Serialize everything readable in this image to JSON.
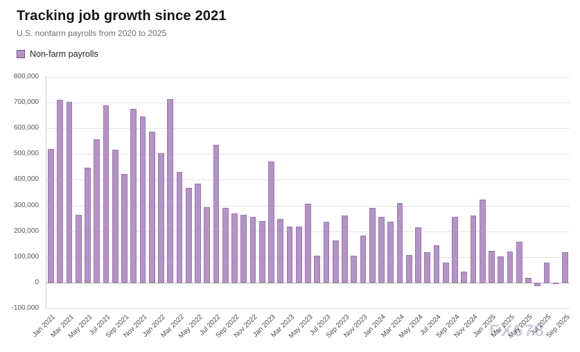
{
  "header": {
    "title": "Tracking job growth since 2021",
    "subtitle": "U.S. nonfarm payrolls from 2020 to 2025"
  },
  "legend": {
    "label": "Non-farm payrolls",
    "color": "#b493c6"
  },
  "watermark": "FX678",
  "chart_data": {
    "type": "bar",
    "title": "Tracking job growth since 2021",
    "xlabel": "",
    "ylabel": "",
    "series_name": "Non-farm payrolls",
    "ylim": [
      -100000,
      800000
    ],
    "y_tick_labels": [
      "800,000",
      "700,000",
      "600,000",
      "500,000",
      "400,000",
      "300,000",
      "200,000",
      "100,000",
      "0",
      "-100,000"
    ],
    "x_tick_every": 2,
    "grid": true,
    "legend_position": "top-left",
    "bar_color": "#b493c6",
    "bar_border_color": "#9b77b3",
    "categories": [
      "Jan 2021",
      "Feb 2021",
      "Mar 2021",
      "Apr 2021",
      "May 2021",
      "Jun 2021",
      "Jul 2021",
      "Aug 2021",
      "Sep 2021",
      "Oct 2021",
      "Nov 2021",
      "Dec 2021",
      "Jan 2022",
      "Feb 2022",
      "Mar 2022",
      "Apr 2022",
      "May 2022",
      "Jun 2022",
      "Jul 2022",
      "Aug 2022",
      "Sep 2022",
      "Oct 2022",
      "Nov 2022",
      "Dec 2022",
      "Jan 2023",
      "Feb 2023",
      "Mar 2023",
      "Apr 2023",
      "May 2023",
      "Jun 2023",
      "Jul 2023",
      "Aug 2023",
      "Sep 2023",
      "Oct 2023",
      "Nov 2023",
      "Dec 2023",
      "Jan 2024",
      "Feb 2024",
      "Mar 2024",
      "Apr 2024",
      "May 2024",
      "Jun 2024",
      "Jul 2024",
      "Aug 2024",
      "Sep 2024",
      "Oct 2024",
      "Nov 2024",
      "Dec 2024",
      "Jan 2025",
      "Feb 2025",
      "Mar 2025",
      "Apr 2025",
      "May 2025",
      "Jun 2025",
      "Jul 2025",
      "Aug 2025",
      "Sep 2025"
    ],
    "values": [
      520000,
      710000,
      704000,
      263000,
      447000,
      557000,
      689000,
      517000,
      424000,
      677000,
      647000,
      588000,
      504000,
      714000,
      430000,
      368000,
      386000,
      293000,
      537000,
      292000,
      269000,
      263000,
      256000,
      239000,
      472000,
      248000,
      217000,
      217000,
      306000,
      105000,
      236000,
      165000,
      262000,
      105000,
      182000,
      290000,
      256000,
      236000,
      310000,
      108000,
      216000,
      118000,
      144000,
      78000,
      255000,
      44000,
      261000,
      323000,
      125000,
      102000,
      120000,
      158000,
      19000,
      -13000,
      79000,
      -4000,
      119000
    ]
  }
}
